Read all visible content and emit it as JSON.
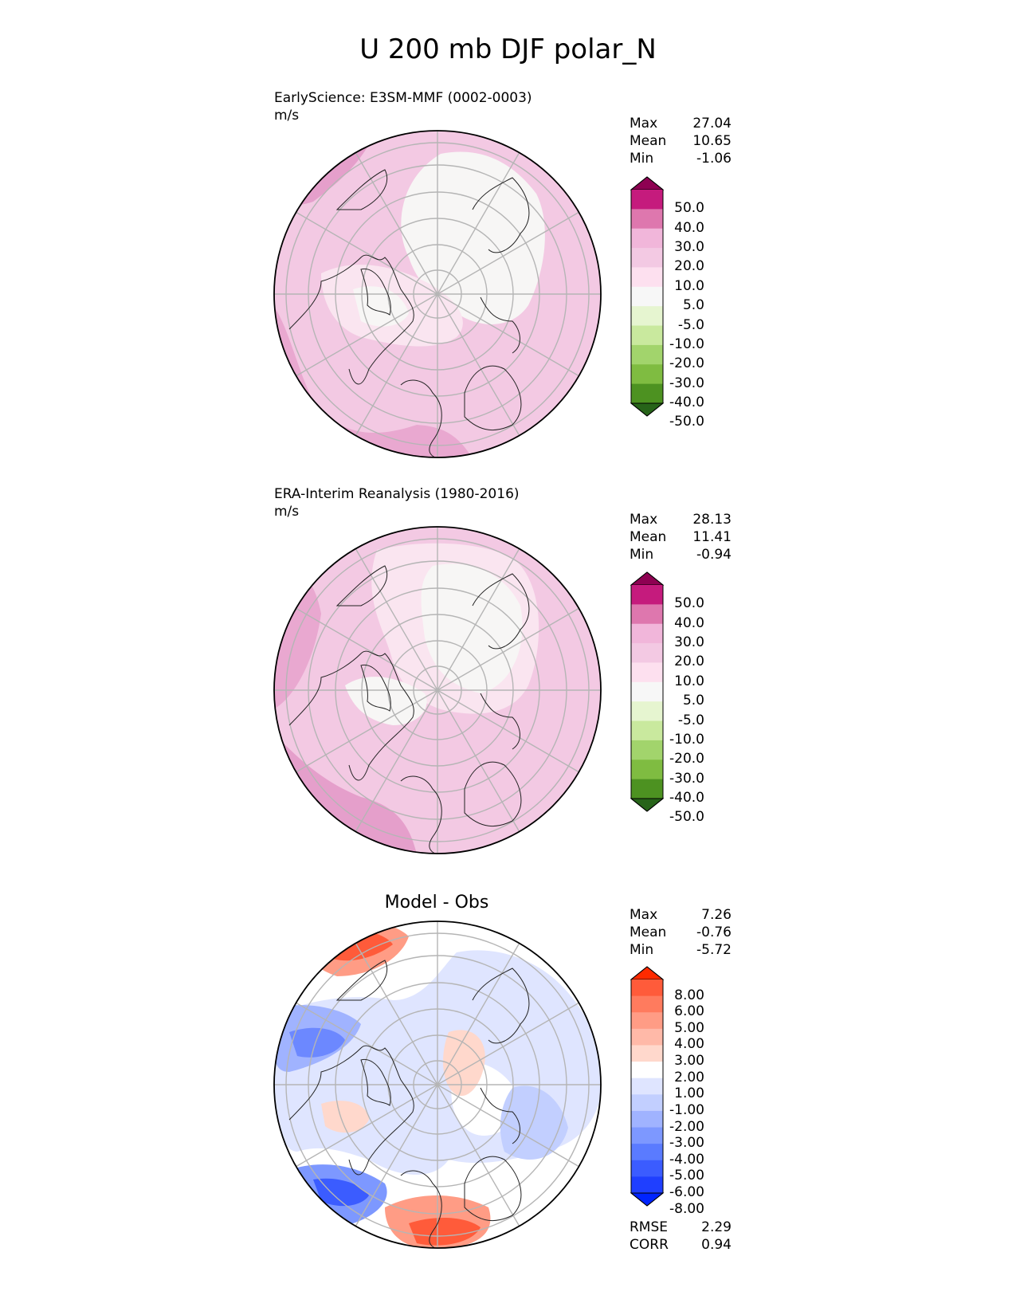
{
  "figure": {
    "title": "U 200 mb DJF polar_N"
  },
  "panels": [
    {
      "id": "test",
      "title_line1": "EarlyScience: E3SM-MMF (0002-0003)",
      "title_line2": "m/s",
      "stats": [
        {
          "label": "Max",
          "value": "27.04"
        },
        {
          "label": "Mean",
          "value": "10.65"
        },
        {
          "label": "Min",
          "value": "-1.06"
        }
      ],
      "colorbar": {
        "labels": [
          "50.0",
          "40.0",
          "30.0",
          "20.0",
          "10.0",
          "5.0",
          "-5.0",
          "-10.0",
          "-20.0",
          "-30.0",
          "-40.0",
          "-50.0"
        ],
        "colors": [
          "#8e0152",
          "#c51b7d",
          "#de77ae",
          "#f1b6da",
          "#f3c9e3",
          "#fde0ef",
          "#f7f7f7",
          "#e6f5d0",
          "#c9e99e",
          "#a2d46c",
          "#7fbc41",
          "#4d9221",
          "#276419"
        ]
      }
    },
    {
      "id": "ref",
      "title_line1": "ERA-Interim Reanalysis (1980-2016)",
      "title_line2": "m/s",
      "stats": [
        {
          "label": "Max",
          "value": "28.13"
        },
        {
          "label": "Mean",
          "value": "11.41"
        },
        {
          "label": "Min",
          "value": "-0.94"
        }
      ],
      "colorbar": {
        "labels": [
          "50.0",
          "40.0",
          "30.0",
          "20.0",
          "10.0",
          "5.0",
          "-5.0",
          "-10.0",
          "-20.0",
          "-30.0",
          "-40.0",
          "-50.0"
        ],
        "colors": [
          "#8e0152",
          "#c51b7d",
          "#de77ae",
          "#f1b6da",
          "#f3c9e3",
          "#fde0ef",
          "#f7f7f7",
          "#e6f5d0",
          "#c9e99e",
          "#a2d46c",
          "#7fbc41",
          "#4d9221",
          "#276419"
        ]
      }
    },
    {
      "id": "diff",
      "center_title": "Model - Obs",
      "stats": [
        {
          "label": "Max",
          "value": "7.26"
        },
        {
          "label": "Mean",
          "value": "-0.76"
        },
        {
          "label": "Min",
          "value": "-5.72"
        }
      ],
      "metrics": [
        {
          "label": "RMSE",
          "value": "2.29"
        },
        {
          "label": "CORR",
          "value": "0.94"
        }
      ],
      "colorbar": {
        "labels": [
          "8.00",
          "6.00",
          "5.00",
          "4.00",
          "3.00",
          "2.00",
          "1.00",
          "-1.00",
          "-2.00",
          "-3.00",
          "-4.00",
          "-5.00",
          "-6.00",
          "-8.00"
        ],
        "colors": [
          "#ff2a00",
          "#ff5b3a",
          "#ff7b5e",
          "#ff9c85",
          "#ffb9a8",
          "#ffd8cc",
          "#ffffff",
          "#dfe5ff",
          "#c2cfff",
          "#a0b3ff",
          "#7d98ff",
          "#5a7bff",
          "#3b5cff",
          "#1f3fff",
          "#0024ff"
        ]
      }
    }
  ]
}
